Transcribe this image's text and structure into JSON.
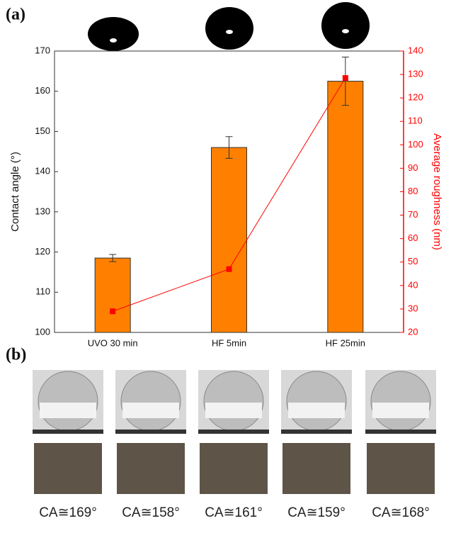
{
  "panel_labels": [
    "(a)",
    "(b)"
  ],
  "chart_data": {
    "type": "bar",
    "categories": [
      "UVO 30 min",
      "HF 5min",
      "HF 25min"
    ],
    "series": [
      {
        "type": "bar",
        "color": "#ff8000",
        "values": [
          118.5,
          146,
          162.5
        ],
        "errors": [
          0.9,
          2.7,
          6
        ]
      },
      {
        "type": "line",
        "axis": "y2",
        "color": "#ff0000",
        "values": [
          29,
          47,
          128.5
        ]
      }
    ],
    "ylabel": "Contact angle (°)",
    "y2label": "Average roughness (nm)",
    "ylim": [
      100,
      170
    ],
    "yticks": [
      100,
      110,
      120,
      130,
      140,
      150,
      160,
      170
    ],
    "y2lim": [
      20,
      140
    ],
    "y2ticks": [
      20,
      30,
      40,
      50,
      60,
      70,
      80,
      90,
      100,
      110,
      120,
      130,
      140
    ]
  },
  "panel_b": {
    "captions": [
      "CA≅169°",
      "CA≅158°",
      "CA≅161°",
      "CA≅159°",
      "CA≅168°"
    ]
  }
}
